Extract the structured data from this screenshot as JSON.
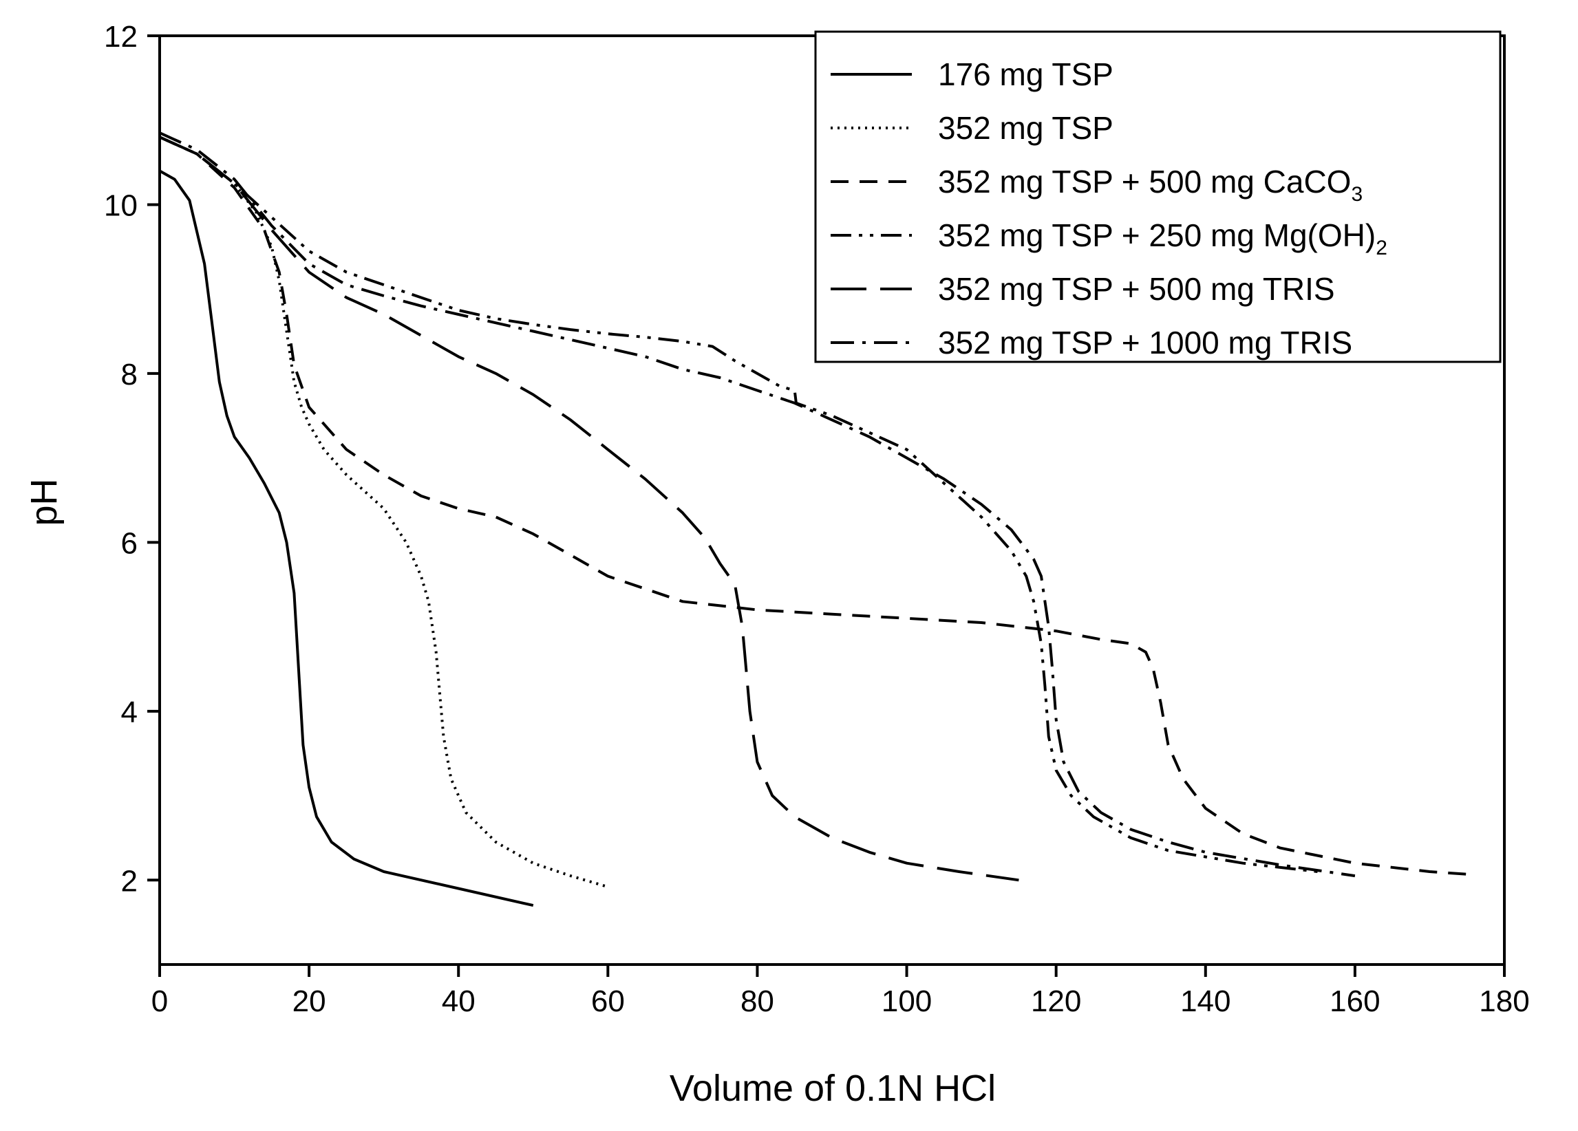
{
  "chart_data": {
    "type": "line",
    "title": "",
    "xlabel": "Volume of 0.1N HCl",
    "ylabel": "pH",
    "xlim": [
      0,
      180
    ],
    "ylim": [
      1,
      12
    ],
    "xticks": [
      0,
      20,
      40,
      60,
      80,
      100,
      120,
      140,
      160,
      180
    ],
    "yticks": [
      2,
      4,
      6,
      8,
      10,
      12
    ],
    "grid": false,
    "legend_position": "top-right",
    "series": [
      {
        "name": "176 mg TSP",
        "dash": "solid",
        "points": [
          [
            0,
            10.4
          ],
          [
            2,
            10.3
          ],
          [
            4,
            10.05
          ],
          [
            6,
            9.3
          ],
          [
            7,
            8.6
          ],
          [
            8,
            7.9
          ],
          [
            9,
            7.5
          ],
          [
            10,
            7.25
          ],
          [
            12,
            7.0
          ],
          [
            14,
            6.7
          ],
          [
            16,
            6.35
          ],
          [
            17,
            6.0
          ],
          [
            18,
            5.4
          ],
          [
            18.6,
            4.5
          ],
          [
            19.2,
            3.6
          ],
          [
            20,
            3.1
          ],
          [
            21,
            2.75
          ],
          [
            23,
            2.45
          ],
          [
            26,
            2.25
          ],
          [
            30,
            2.1
          ],
          [
            40,
            1.9
          ],
          [
            50,
            1.7
          ]
        ]
      },
      {
        "name": "352 mg TSP",
        "dash": "dotted",
        "points": [
          [
            0,
            10.8
          ],
          [
            5,
            10.6
          ],
          [
            10,
            10.25
          ],
          [
            13,
            9.9
          ],
          [
            15,
            9.5
          ],
          [
            16,
            9.1
          ],
          [
            17,
            8.5
          ],
          [
            18,
            7.9
          ],
          [
            19,
            7.6
          ],
          [
            20,
            7.4
          ],
          [
            22,
            7.1
          ],
          [
            25,
            6.8
          ],
          [
            30,
            6.4
          ],
          [
            33,
            6.0
          ],
          [
            35,
            5.6
          ],
          [
            36,
            5.3
          ],
          [
            37,
            4.7
          ],
          [
            37.5,
            4.2
          ],
          [
            38,
            3.7
          ],
          [
            39,
            3.2
          ],
          [
            41,
            2.8
          ],
          [
            45,
            2.45
          ],
          [
            50,
            2.2
          ],
          [
            55,
            2.05
          ],
          [
            60,
            1.92
          ]
        ]
      },
      {
        "name": "352 mg TSP + 500 mg CaCO₃",
        "dash": "dash",
        "points": [
          [
            0,
            10.8
          ],
          [
            5,
            10.6
          ],
          [
            10,
            10.2
          ],
          [
            14,
            9.7
          ],
          [
            16,
            9.2
          ],
          [
            17,
            8.7
          ],
          [
            18,
            8.1
          ],
          [
            20,
            7.6
          ],
          [
            25,
            7.1
          ],
          [
            30,
            6.8
          ],
          [
            35,
            6.55
          ],
          [
            40,
            6.4
          ],
          [
            45,
            6.3
          ],
          [
            50,
            6.1
          ],
          [
            55,
            5.85
          ],
          [
            60,
            5.6
          ],
          [
            65,
            5.45
          ],
          [
            70,
            5.3
          ],
          [
            75,
            5.25
          ],
          [
            80,
            5.2
          ],
          [
            90,
            5.15
          ],
          [
            100,
            5.1
          ],
          [
            110,
            5.05
          ],
          [
            120,
            4.95
          ],
          [
            126,
            4.85
          ],
          [
            130,
            4.8
          ],
          [
            132,
            4.7
          ],
          [
            133,
            4.5
          ],
          [
            134,
            4.1
          ],
          [
            135,
            3.6
          ],
          [
            137,
            3.2
          ],
          [
            140,
            2.85
          ],
          [
            145,
            2.55
          ],
          [
            150,
            2.38
          ],
          [
            160,
            2.2
          ],
          [
            170,
            2.1
          ],
          [
            175,
            2.07
          ]
        ]
      },
      {
        "name": "352 mg TSP + 250 mg Mg(OH)₂",
        "dash": "dash-dot-dot",
        "points": [
          [
            0,
            10.8
          ],
          [
            5,
            10.6
          ],
          [
            10,
            10.25
          ],
          [
            15,
            9.85
          ],
          [
            20,
            9.45
          ],
          [
            25,
            9.2
          ],
          [
            30,
            9.05
          ],
          [
            35,
            8.9
          ],
          [
            40,
            8.75
          ],
          [
            45,
            8.65
          ],
          [
            50,
            8.58
          ],
          [
            55,
            8.52
          ],
          [
            60,
            8.47
          ],
          [
            65,
            8.43
          ],
          [
            70,
            8.38
          ],
          [
            74,
            8.32
          ],
          [
            77,
            8.15
          ],
          [
            80,
            8.0
          ],
          [
            83,
            7.85
          ],
          [
            85,
            7.8
          ],
          [
            85.2,
            7.65
          ],
          [
            90,
            7.5
          ],
          [
            95,
            7.3
          ],
          [
            100,
            7.1
          ],
          [
            105,
            6.7
          ],
          [
            110,
            6.3
          ],
          [
            114,
            5.9
          ],
          [
            116,
            5.6
          ],
          [
            117,
            5.3
          ],
          [
            118,
            4.8
          ],
          [
            118.5,
            4.3
          ],
          [
            119,
            3.7
          ],
          [
            120,
            3.3
          ],
          [
            122,
            3.0
          ],
          [
            125,
            2.75
          ],
          [
            130,
            2.5
          ],
          [
            135,
            2.35
          ],
          [
            145,
            2.2
          ],
          [
            155,
            2.1
          ]
        ]
      },
      {
        "name": "352 mg TSP + 500 mg TRIS",
        "dash": "long-dash",
        "points": [
          [
            0,
            10.8
          ],
          [
            5,
            10.6
          ],
          [
            10,
            10.25
          ],
          [
            15,
            9.7
          ],
          [
            20,
            9.2
          ],
          [
            25,
            8.9
          ],
          [
            30,
            8.7
          ],
          [
            35,
            8.45
          ],
          [
            40,
            8.2
          ],
          [
            45,
            8.0
          ],
          [
            50,
            7.75
          ],
          [
            55,
            7.45
          ],
          [
            60,
            7.1
          ],
          [
            65,
            6.75
          ],
          [
            70,
            6.35
          ],
          [
            73,
            6.05
          ],
          [
            75,
            5.75
          ],
          [
            77,
            5.5
          ],
          [
            78,
            5.0
          ],
          [
            78.5,
            4.5
          ],
          [
            79,
            4.0
          ],
          [
            80,
            3.4
          ],
          [
            82,
            3.0
          ],
          [
            85,
            2.75
          ],
          [
            90,
            2.5
          ],
          [
            95,
            2.33
          ],
          [
            100,
            2.2
          ],
          [
            107,
            2.1
          ],
          [
            115,
            2.0
          ]
        ]
      },
      {
        "name": "352 mg TSP + 1000 mg TRIS",
        "dash": "dash-dot",
        "points": [
          [
            0,
            10.85
          ],
          [
            5,
            10.65
          ],
          [
            10,
            10.3
          ],
          [
            15,
            9.75
          ],
          [
            20,
            9.3
          ],
          [
            25,
            9.05
          ],
          [
            30,
            8.92
          ],
          [
            35,
            8.8
          ],
          [
            40,
            8.7
          ],
          [
            45,
            8.6
          ],
          [
            50,
            8.5
          ],
          [
            55,
            8.4
          ],
          [
            60,
            8.3
          ],
          [
            65,
            8.2
          ],
          [
            70,
            8.05
          ],
          [
            75,
            7.95
          ],
          [
            80,
            7.8
          ],
          [
            85,
            7.65
          ],
          [
            90,
            7.45
          ],
          [
            95,
            7.25
          ],
          [
            100,
            7.0
          ],
          [
            105,
            6.75
          ],
          [
            110,
            6.45
          ],
          [
            114,
            6.15
          ],
          [
            117,
            5.8
          ],
          [
            118,
            5.6
          ],
          [
            119,
            5.0
          ],
          [
            119.5,
            4.5
          ],
          [
            120,
            3.9
          ],
          [
            121,
            3.4
          ],
          [
            123,
            3.05
          ],
          [
            126,
            2.8
          ],
          [
            130,
            2.6
          ],
          [
            135,
            2.45
          ],
          [
            140,
            2.33
          ],
          [
            150,
            2.18
          ],
          [
            160,
            2.05
          ]
        ]
      }
    ]
  }
}
